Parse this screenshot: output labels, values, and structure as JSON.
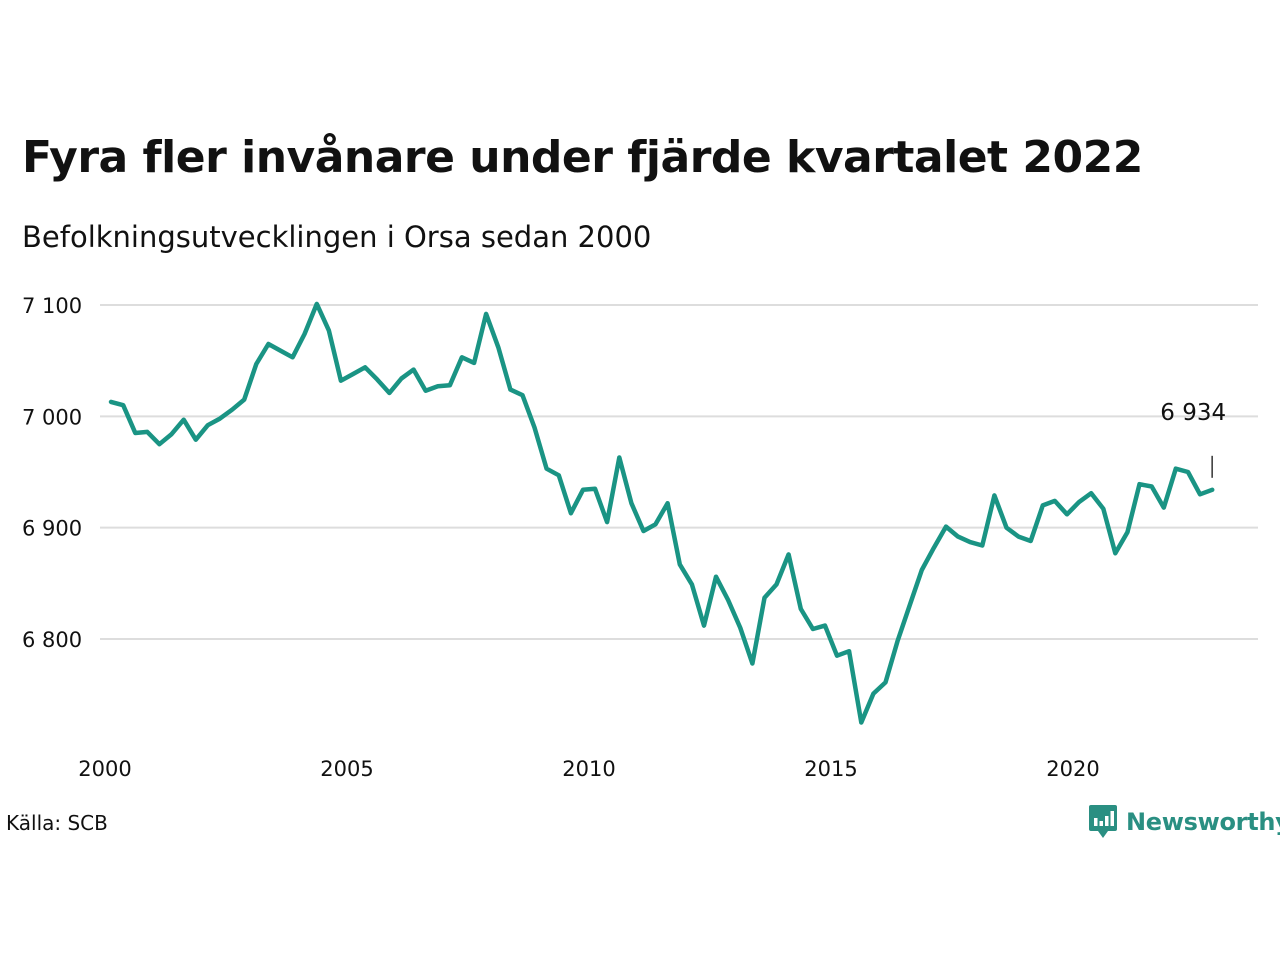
{
  "header": {
    "title": "Fyra fler invånare under fjärde kvartalet 2022",
    "subtitle": "Befolkningsutvecklingen i Orsa sedan 2000"
  },
  "footer": {
    "source": "Källa: SCB",
    "brand": "Newsworthy",
    "brand_icon": "bar-chart-speech-icon"
  },
  "colors": {
    "line": "#1a9484",
    "grid": "#dddddd",
    "brand": "#2a8f82"
  },
  "chart_data": {
    "type": "line",
    "title": "Fyra fler invånare under fjärde kvartalet 2022",
    "subtitle": "Befolkningsutvecklingen i Orsa sedan 2000",
    "xlabel": "",
    "ylabel": "",
    "xlim": [
      2000,
      2023.8
    ],
    "ylim": [
      6710,
      7110
    ],
    "yticks": [
      6800,
      6900,
      7000,
      7100
    ],
    "ytick_labels": [
      "6 800",
      "6 900",
      "7 000",
      "7 100"
    ],
    "xticks": [
      2000,
      2005,
      2010,
      2015,
      2020
    ],
    "xtick_labels": [
      "2000",
      "2005",
      "2010",
      "2015",
      "2020"
    ],
    "grid": true,
    "legend": "none",
    "last_value_label": "6 934",
    "series": [
      {
        "x": [
          2000.125,
          2000.375,
          2000.625,
          2000.875,
          2001.125,
          2001.375,
          2001.625,
          2001.875,
          2002.125,
          2002.375,
          2002.625,
          2002.875,
          2003.125,
          2003.375,
          2003.625,
          2003.875,
          2004.125,
          2004.375,
          2004.625,
          2004.875,
          2005.125,
          2005.375,
          2005.625,
          2005.875,
          2006.125,
          2006.375,
          2006.625,
          2006.875,
          2007.125,
          2007.375,
          2007.625,
          2007.875,
          2008.125,
          2008.375,
          2008.625,
          2008.875,
          2009.125,
          2009.375,
          2009.625,
          2009.875,
          2010.125,
          2010.375,
          2010.625,
          2010.875,
          2011.125,
          2011.375,
          2011.625,
          2011.875,
          2012.125,
          2012.375,
          2012.625,
          2012.875,
          2013.125,
          2013.375,
          2013.625,
          2013.875,
          2014.125,
          2014.375,
          2014.625,
          2014.875,
          2015.125,
          2015.375,
          2015.625,
          2015.875,
          2016.125,
          2016.375,
          2016.625,
          2016.875,
          2017.125,
          2017.375,
          2017.625,
          2017.875,
          2018.125,
          2018.375,
          2018.625,
          2018.875,
          2019.125,
          2019.375,
          2019.625,
          2019.875,
          2020.125,
          2020.375,
          2020.625,
          2020.875,
          2021.125,
          2021.375,
          2021.625,
          2021.875,
          2022.125,
          2022.375,
          2022.625,
          2022.875
        ],
        "values": [
          7013,
          7010,
          6985,
          6986,
          6975,
          6984,
          6997,
          6979,
          6992,
          6998,
          7006,
          7015,
          7047,
          7065,
          7059,
          7053,
          7074,
          7101,
          7077,
          7032,
          7038,
          7044,
          7033,
          7021,
          7034,
          7042,
          7023,
          7027,
          7028,
          7053,
          7048,
          7092,
          7062,
          7024,
          7019,
          6990,
          6953,
          6947,
          6913,
          6934,
          6935,
          6905,
          6963,
          6922,
          6897,
          6903,
          6922,
          6867,
          6849,
          6812,
          6856,
          6835,
          6810,
          6778,
          6837,
          6849,
          6876,
          6827,
          6809,
          6812,
          6785,
          6789,
          6725,
          6751,
          6761,
          6798,
          6830,
          6862,
          6882,
          6901,
          6892,
          6887,
          6884,
          6929,
          6900,
          6892,
          6888,
          6920,
          6924,
          6912,
          6923,
          6931,
          6917,
          6877,
          6896,
          6939,
          6937,
          6918,
          6953,
          6950,
          6930,
          6934
        ]
      }
    ]
  }
}
